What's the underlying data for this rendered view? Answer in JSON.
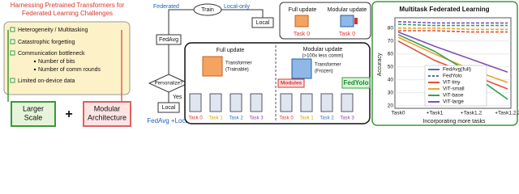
{
  "left": {
    "title_lines": [
      "Harnessing Pretrained Transformers for",
      "Federated Learning Challenges"
    ],
    "challenges": [
      "Heterogeneity / Multitasking",
      "Catastrophic forgetting",
      "Communication bottleneck",
      "Number of bits",
      "Number of comm rounds",
      "Limited on-device data"
    ],
    "solutions": [
      [
        "Larger",
        "Scale"
      ],
      [
        "Modular",
        "Architecture"
      ]
    ],
    "plus": "+"
  },
  "flow": {
    "federated": "Federated",
    "train": "Train",
    "local_only": "Local-only",
    "local_top": "Local",
    "fedavg": "FedAvg",
    "personalize": "Personalize?",
    "yes": "Yes",
    "local_bottom": "Local",
    "result": "FedAvg +Local"
  },
  "mini": {
    "full": "Full update",
    "modular": "Modular update",
    "task_labels": [
      "Task 0",
      "Task 0"
    ]
  },
  "detail": {
    "full_update": "Full update",
    "transformer_trainable": [
      "Transformer",
      "(Trainable)"
    ],
    "modular_update": "Modular update",
    "comm": "(>100x less comm)",
    "transformer_frozen": [
      "Transformer",
      "(Frozen)"
    ],
    "modules": "Modules",
    "fedyolo": "FedYolo",
    "tasks_left": [
      "Task 0",
      "Task 1",
      "Task 2",
      "Task 3"
    ],
    "tasks_right": [
      "Task 0",
      "Task 1",
      "Task 2",
      "Task 3"
    ]
  },
  "chart_data": {
    "type": "line",
    "title": "Multitask Federated Learning",
    "y_label": "Accuracy",
    "x_label": "Incorporating more tasks",
    "categories": [
      "Task0",
      "+Task1",
      "+Task1,2",
      "+Task1,2,3"
    ],
    "ylim": [
      18,
      88
    ],
    "yticks": [
      20,
      30,
      40,
      50,
      60,
      70,
      80
    ],
    "grid": true,
    "line_styles": [
      {
        "name": "FedAvg(full)",
        "dashed": false
      },
      {
        "name": "FedYolo",
        "dashed": true
      }
    ],
    "series": [
      {
        "name": "ViT-tiny",
        "color": "#e0503a",
        "values": [
          70,
          55,
          44,
          33
        ],
        "fedyolo_values": [
          78,
          78,
          77,
          77
        ]
      },
      {
        "name": "ViT-small",
        "color": "#f0a030",
        "values": [
          73,
          60,
          48,
          38
        ],
        "fedyolo_values": [
          80,
          80,
          79,
          79
        ]
      },
      {
        "name": "ViT-base",
        "color": "#3aa050",
        "values": [
          75,
          62,
          45,
          25
        ],
        "fedyolo_values": [
          83,
          82,
          82,
          82
        ]
      },
      {
        "name": "ViT-large",
        "color": "#8050b0",
        "values": [
          77,
          66,
          56,
          46
        ],
        "fedyolo_values": [
          85,
          84,
          84,
          84
        ]
      }
    ]
  }
}
